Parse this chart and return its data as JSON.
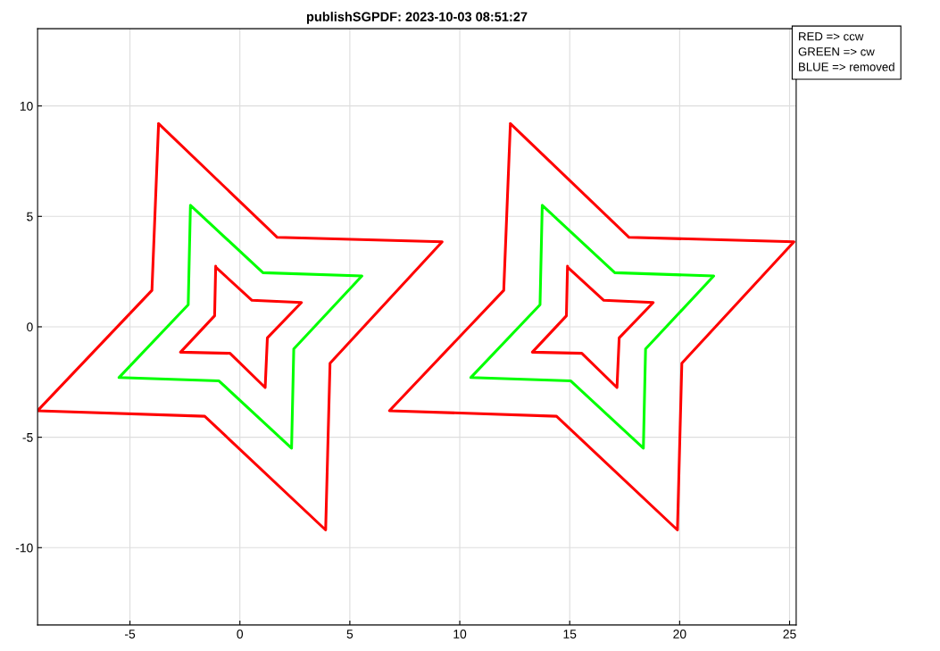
{
  "chart_data": {
    "type": "line",
    "title": "publishSGPDF: 2023-10-03 08:51:27",
    "annotations": [
      "RED => ccw",
      "GREEN => cw",
      "BLUE => removed"
    ],
    "xlim": [
      -9.2,
      25.3
    ],
    "ylim": [
      -13.5,
      13.5
    ],
    "xticks": [
      -5,
      0,
      5,
      10,
      15,
      20,
      25
    ],
    "yticks": [
      -10,
      -5,
      0,
      5,
      10
    ],
    "grid": true,
    "marker": "none",
    "line_style": "solid",
    "series": [
      {
        "color": "#ff0000",
        "x": [
          -3.7,
          1.7,
          9.2,
          4.1,
          3.9,
          -1.6,
          -9.2,
          -4.0,
          -3.7
        ],
        "values": [
          9.2,
          4.05,
          3.85,
          -1.65,
          -9.2,
          -4.05,
          -3.8,
          1.65,
          9.15
        ]
      },
      {
        "color": "#00ff00",
        "x": [
          -2.25,
          1.05,
          5.55,
          2.45,
          2.35,
          -0.95,
          -5.5,
          -2.35,
          -2.25
        ],
        "values": [
          5.5,
          2.45,
          2.3,
          -1.0,
          -5.5,
          -2.45,
          -2.3,
          1.0,
          5.45
        ]
      },
      {
        "color": "#ff0000",
        "x": [
          -1.1,
          -1.15,
          -2.7,
          -0.45,
          1.15,
          1.25,
          2.8,
          0.55,
          -1.1
        ],
        "values": [
          2.75,
          0.5,
          -1.15,
          -1.2,
          -2.75,
          -0.5,
          1.1,
          1.2,
          2.7
        ]
      },
      {
        "color": "#ff0000",
        "x": [
          12.3,
          17.7,
          25.2,
          20.1,
          19.9,
          14.4,
          6.8,
          12.0,
          12.3
        ],
        "values": [
          9.2,
          4.05,
          3.85,
          -1.65,
          -9.2,
          -4.05,
          -3.8,
          1.65,
          9.15
        ]
      },
      {
        "color": "#00ff00",
        "x": [
          13.75,
          17.05,
          21.55,
          18.45,
          18.35,
          15.05,
          10.5,
          13.65,
          13.75
        ],
        "values": [
          5.5,
          2.45,
          2.3,
          -1.0,
          -5.5,
          -2.45,
          -2.3,
          1.0,
          5.45
        ]
      },
      {
        "color": "#ff0000",
        "x": [
          14.9,
          14.85,
          13.3,
          15.55,
          17.15,
          17.25,
          18.8,
          16.55,
          14.9
        ],
        "values": [
          2.75,
          0.5,
          -1.15,
          -1.2,
          -2.75,
          -0.5,
          1.1,
          1.2,
          2.7
        ]
      }
    ]
  }
}
